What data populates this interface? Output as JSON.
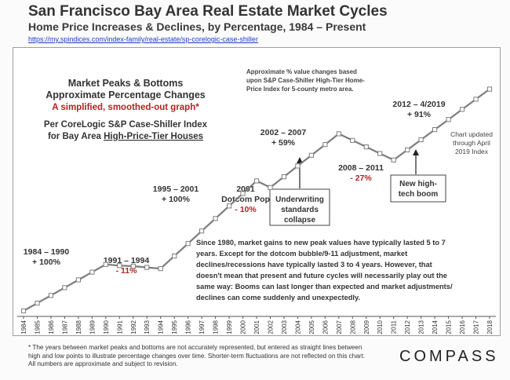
{
  "header": {
    "title": "San Francisco Bay Area Real Estate Market Cycles",
    "subtitle": "Home Price Increases & Declines, by Percentage, 1984 – Present",
    "url": "https://my.spindices.com/index-family/real-estate/sp-corelogic-case-shiller"
  },
  "chart_data": {
    "type": "line",
    "x": [
      "1984",
      "1985",
      "1986",
      "1987",
      "1988",
      "1989",
      "1990",
      "1991",
      "1992",
      "1993",
      "1994",
      "1995",
      "1996",
      "1997",
      "1998",
      "1999",
      "2000",
      "2001",
      "2002",
      "2003",
      "2004",
      "2005",
      "2006",
      "2007",
      "2008",
      "2009",
      "2010",
      "2011",
      "2012",
      "2013",
      "2014",
      "2015",
      "2016",
      "2017",
      "2018"
    ],
    "series": [
      {
        "values": [
          0,
          13,
          26,
          39,
          52,
          65,
          78,
          76,
          75,
          73,
          71,
          92,
          113,
          134,
          155,
          176,
          197,
          218,
          207,
          225,
          243,
          261,
          279,
          297,
          286,
          275,
          264,
          253,
          270,
          287,
          304,
          321,
          338,
          355,
          372
        ]
      }
    ],
    "ylim": [
      0,
      395
    ],
    "grid": false,
    "legend": "none",
    "line_color": "#7d7d7d",
    "marker_color": "#ffffff",
    "annotations": {
      "peaks_title_1": "Market Peaks & Bottoms",
      "peaks_title_2": "Approximate Percentage Changes",
      "peaks_smoothed": "A simplified, smoothed-out graph*",
      "index_line_1": "Per CoreLogic S&P Case-Shiller Index",
      "index_line_2_pre": "for Bay Area ",
      "index_line_2_link": "High-Price-Tier Houses",
      "note_1": "Approximate % value changes  based",
      "note_2": "upon S&P Case-Shiller High-Tier Home-",
      "note_3": "Price Index for 5-county metro area.",
      "cycle_1984_range": "1984 – 1990",
      "cycle_1984_pct": "+ 100%",
      "cycle_1991_range": "1991 – 1994",
      "cycle_1991_pct": "- 11%",
      "cycle_1995_range": "1995 – 2001",
      "cycle_1995_pct": "+ 100%",
      "cycle_2001_year": "2001",
      "cycle_2001_name": "Dotcom Pop",
      "cycle_2001_pct": "- 10%",
      "cycle_2002_range": "2002 – 2007",
      "cycle_2002_pct": "+ 59%",
      "cycle_2008_range": "2008 – 2011",
      "cycle_2008_pct": "- 27%",
      "cycle_2012_range": "2012 – 4/2019",
      "cycle_2012_pct": "+ 91%",
      "updated_1": "Chart updated",
      "updated_2": "through April",
      "updated_3": "2019 Index",
      "underwriting_1": "Underwriting",
      "underwriting_2": "standards",
      "underwriting_3": "collapse",
      "hightech_1": "New high-",
      "hightech_2": "tech boom",
      "commentary_1": "Since 1980, market gains to new peak values have typically lasted 5 to 7",
      "commentary_2": "years.  Except  for  the  dotcom  bubble/9-11  adjustment,  market",
      "commentary_3": "declines/recessions have typically lasted 3 to 4 years. However, that",
      "commentary_4": "doesn't mean that present and future cycles will necessarily play out the",
      "commentary_5": "same way: Booms can last longer than expected and market adjustments/",
      "commentary_6": "declines can come suddenly and unexpectedly."
    },
    "colors": {
      "red": "#b22222",
      "dark": "#333333",
      "box_border": "#444444"
    }
  },
  "footer": {
    "footnote": "* The years between market peaks and bottoms are not accurately represented, but entered as straight lines between high and low points to illustrate percentage changes over time. Shorter-term fluctuations are not reflected on this chart. All numbers are approximate and subject to revision.",
    "logo": "COMPASS"
  }
}
